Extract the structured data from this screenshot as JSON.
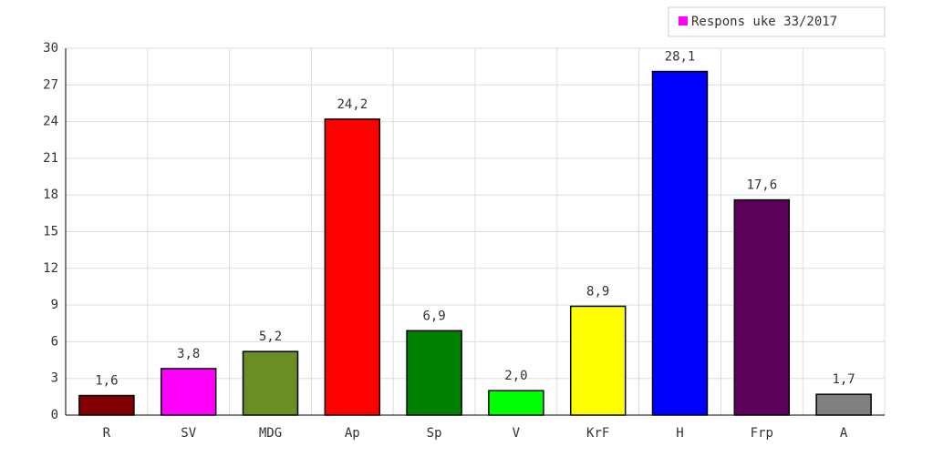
{
  "chart_data": {
    "type": "bar",
    "categories": [
      "R",
      "SV",
      "MDG",
      "Ap",
      "Sp",
      "V",
      "KrF",
      "H",
      "Frp",
      "A"
    ],
    "series": [
      {
        "name": "Respons uke 33/2017",
        "color": "#ff00ff",
        "values": [
          1.6,
          3.8,
          5.2,
          24.2,
          6.9,
          2.0,
          8.9,
          28.1,
          17.6,
          1.7
        ],
        "value_labels": [
          "1,6",
          "3,8",
          "5,2",
          "24,2",
          "6,9",
          "2,0",
          "8,9",
          "28,1",
          "17,6",
          "1,7"
        ]
      }
    ],
    "colors": [
      "#800000",
      "#ff00ff",
      "#6b8e23",
      "#ff0000",
      "#008000",
      "#00ff00",
      "#ffff00",
      "#0000ff",
      "#5c005c",
      "#808080"
    ],
    "ylim": [
      0,
      30
    ],
    "yticks": [
      0,
      3,
      6,
      9,
      12,
      15,
      18,
      21,
      24,
      27,
      30
    ],
    "grid": true,
    "legend": "top-right"
  }
}
